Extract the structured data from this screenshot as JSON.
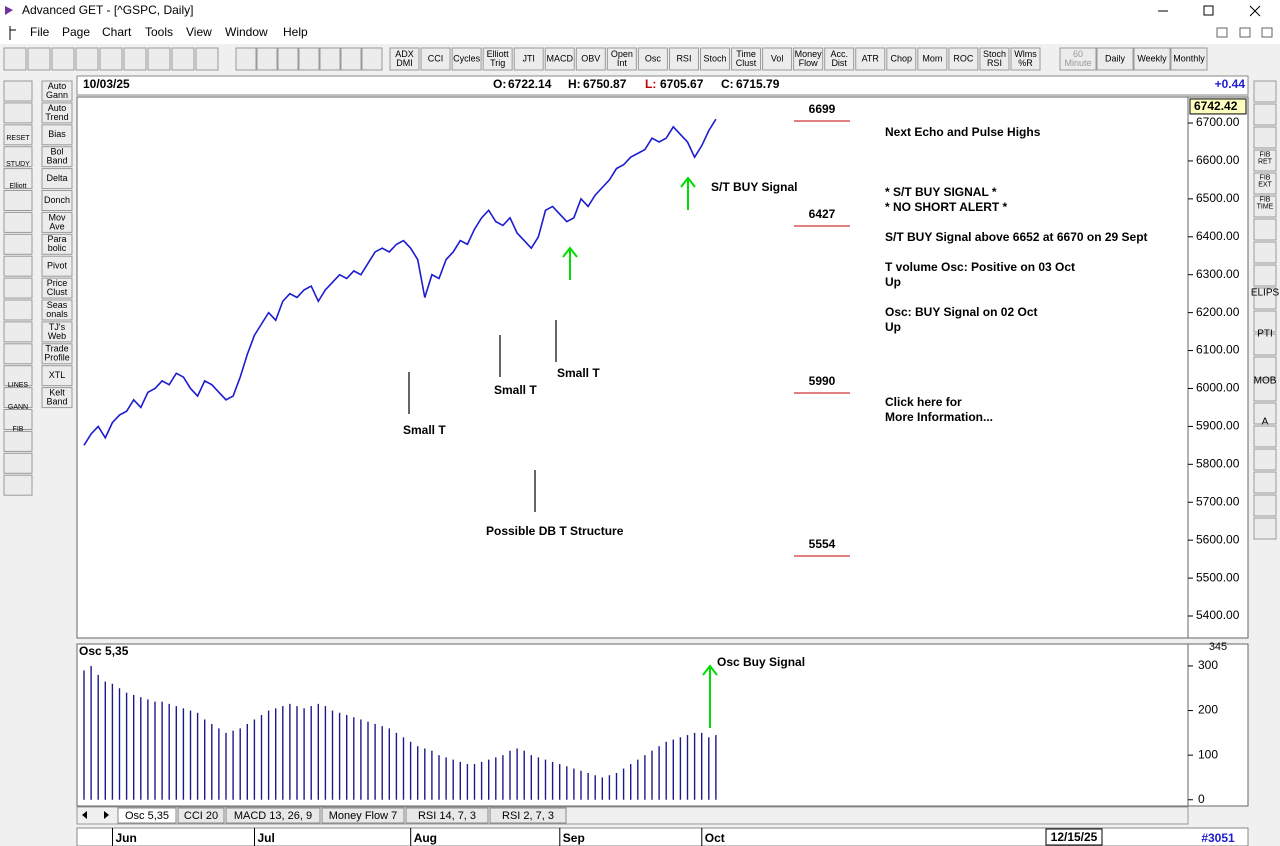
{
  "window": {
    "title": "Advanced GET - [^GSPC, Daily]"
  },
  "menu": [
    "File",
    "Page",
    "Chart",
    "Tools",
    "View",
    "Window",
    "Help"
  ],
  "toolbar": [
    [
      "ADX",
      "DMI"
    ],
    [
      "CCI"
    ],
    [
      "Cycles"
    ],
    [
      "Elliott",
      "Trig"
    ],
    [
      "JTI"
    ],
    [
      "MACD"
    ],
    [
      "OBV"
    ],
    [
      "Open",
      "Int"
    ],
    [
      "Osc"
    ],
    [
      "RSI"
    ],
    [
      "Stoch"
    ],
    [
      "Time",
      "Clust"
    ],
    [
      "Vol"
    ],
    [
      "Money",
      "Flow"
    ],
    [
      "Acc.",
      "Dist"
    ],
    [
      "ATR"
    ],
    [
      "Chop"
    ],
    [
      "Mom"
    ],
    [
      "ROC"
    ],
    [
      "Stoch",
      "RSI"
    ],
    [
      "Wlms",
      "%R"
    ]
  ],
  "timeframes": [
    [
      "60",
      "Minute"
    ],
    [
      "Daily"
    ],
    [
      "Weekly"
    ],
    [
      "Monthly"
    ]
  ],
  "left_toolbar": [
    [
      "Auto",
      "Gann"
    ],
    [
      "Auto",
      "Trend"
    ],
    [
      "Bias"
    ],
    [
      "Bol",
      "Band"
    ],
    [
      "Delta"
    ],
    [
      "Donch"
    ],
    [
      "Mov",
      "Ave"
    ],
    [
      "Para",
      "bolic"
    ],
    [
      "Pivot"
    ],
    [
      "Price",
      "Clust"
    ],
    [
      "Seas",
      "onals"
    ],
    [
      "TJ's",
      "Web"
    ],
    [
      "Trade",
      "Profile"
    ],
    [
      "XTL"
    ],
    [
      "Kelt",
      "Band"
    ]
  ],
  "left_icons": [
    "RESET",
    "STUDY",
    "Elliott",
    "LINES",
    "GANN",
    "FIB"
  ],
  "right_toolbar": [
    [
      "FIB",
      "RET"
    ],
    [
      "FIB",
      "EXT"
    ],
    [
      "FIB",
      "TIME"
    ],
    [
      "ELIPS"
    ],
    [
      "PTI"
    ],
    [
      "MOB"
    ],
    [
      "A"
    ]
  ],
  "header": {
    "date": "10/03/25",
    "open_label": "O:",
    "open": 6722.14,
    "high_label": "H:",
    "high": 6750.87,
    "low_label": "L:",
    "low": 6705.67,
    "close_label": "C:",
    "close": 6715.79,
    "change": "+0.44"
  },
  "price_chart": {
    "type": "line",
    "ylim": [
      5342,
      6766
    ],
    "yticks": [
      {
        "value": 6700,
        "label": "6700.00"
      },
      {
        "value": 6600,
        "label": "6600.00"
      },
      {
        "value": 6500,
        "label": "6500.00"
      },
      {
        "value": 6400,
        "label": "6400.00"
      },
      {
        "value": 6300,
        "label": "6300.00"
      },
      {
        "value": 6200,
        "label": "6200.00"
      },
      {
        "value": 6100,
        "label": "6100.00"
      },
      {
        "value": 6000,
        "label": "6000.00"
      },
      {
        "value": 5900,
        "label": "5900.00"
      },
      {
        "value": 5800,
        "label": "5800.00"
      },
      {
        "value": 5700,
        "label": "5700.00"
      },
      {
        "value": 5600,
        "label": "5600.00"
      },
      {
        "value": 5500,
        "label": "5500.00"
      },
      {
        "value": 5400,
        "label": "5400.00"
      }
    ],
    "last_price": 6742.42,
    "color": "#1c1cd0",
    "values": [
      5850,
      5880,
      5900,
      5870,
      5910,
      5930,
      5940,
      5970,
      5950,
      5990,
      6000,
      6020,
      6010,
      6040,
      6030,
      6000,
      5980,
      6020,
      6010,
      5990,
      5970,
      5980,
      6030,
      6090,
      6140,
      6170,
      6200,
      6180,
      6230,
      6250,
      6240,
      6260,
      6270,
      6230,
      6260,
      6280,
      6300,
      6290,
      6310,
      6300,
      6330,
      6360,
      6370,
      6360,
      6380,
      6390,
      6370,
      6340,
      6240,
      6300,
      6290,
      6340,
      6360,
      6390,
      6380,
      6420,
      6450,
      6470,
      6440,
      6430,
      6450,
      6410,
      6390,
      6370,
      6400,
      6470,
      6480,
      6460,
      6440,
      6450,
      6500,
      6480,
      6510,
      6530,
      6550,
      6580,
      6590,
      6610,
      6620,
      6630,
      6660,
      6650,
      6660,
      6690,
      6670,
      6650,
      6610,
      6640,
      6680,
      6710
    ],
    "levels": [
      6699,
      6427,
      5990,
      5554
    ],
    "notes": [
      "Next Echo and Pulse Highs",
      "* S/T BUY SIGNAL *",
      "* NO SHORT ALERT *",
      "S/T BUY Signal above 6652 at 6670 on 29 Sept",
      "T volume Osc: Positive on 03 Oct",
      "Up",
      "Osc: BUY Signal on 02 Oct",
      "Up",
      "Click here for",
      "More Information..."
    ],
    "annotations": [
      "S/T BUY Signal",
      "Small T",
      "Small T",
      "Small T",
      "Possible DB T Structure"
    ]
  },
  "osc_chart": {
    "type": "bar",
    "title": "Osc 5,35",
    "ylim": [
      -14,
      347
    ],
    "yticks": [
      0,
      100,
      200,
      300
    ],
    "top_label": 345,
    "annotation": "Osc Buy Signal",
    "color": "#1a1a8c",
    "values": [
      290,
      300,
      280,
      265,
      260,
      250,
      240,
      235,
      230,
      225,
      220,
      220,
      215,
      210,
      205,
      200,
      195,
      180,
      170,
      160,
      150,
      155,
      160,
      170,
      180,
      190,
      200,
      205,
      210,
      215,
      210,
      205,
      210,
      215,
      210,
      200,
      195,
      190,
      185,
      180,
      175,
      170,
      165,
      160,
      150,
      140,
      130,
      120,
      115,
      110,
      100,
      95,
      90,
      85,
      80,
      80,
      85,
      90,
      95,
      100,
      110,
      115,
      110,
      100,
      95,
      90,
      85,
      80,
      75,
      70,
      65,
      60,
      55,
      50,
      55,
      60,
      70,
      80,
      90,
      100,
      110,
      120,
      130,
      135,
      140,
      145,
      150,
      150,
      140,
      145
    ]
  },
  "tabs": [
    "Osc 5,35",
    "CCI 20",
    "MACD 13, 26, 9",
    "Money Flow 7",
    "RSI 14, 7, 3",
    "RSI 2, 7, 3"
  ],
  "x_axis": {
    "months": [
      "Jun",
      "Jul",
      "Aug",
      "Sep",
      "Oct"
    ],
    "end_date": "12/15/25",
    "record": "#3051"
  }
}
